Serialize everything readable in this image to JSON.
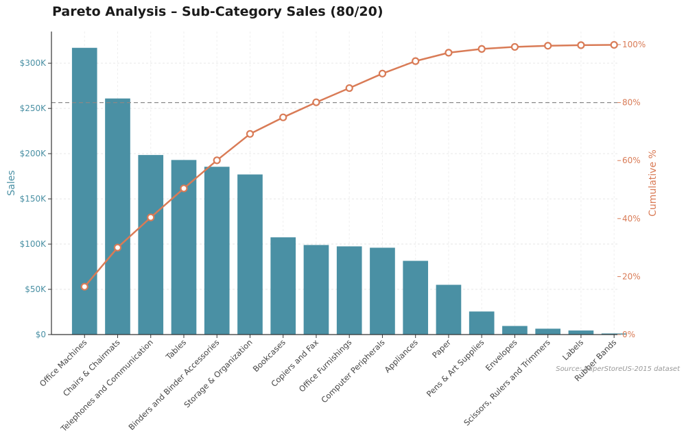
{
  "chart_data": {
    "type": "bar",
    "title": "Pareto Analysis – Sub-Category Sales (80/20)",
    "source": "Source: SuperStoreUS-2015 dataset",
    "categories": [
      "Office Machines",
      "Chairs & Chairmats",
      "Telephones and Communication",
      "Tables",
      "Binders and Binder Accessories",
      "Storage & Organization",
      "Bookcases",
      "Copiers and Fax",
      "Office Furnishings",
      "Computer Peripherals",
      "Appliances",
      "Paper",
      "Pens & Art Supplies",
      "Envelopes",
      "Scissors, Rulers and Trimmers",
      "Labels",
      "Rubber Bands"
    ],
    "series": [
      {
        "name": "Sales",
        "type": "bar",
        "axis": "left",
        "color": "#4a90a4",
        "values": [
          317000,
          261000,
          198500,
          193000,
          185500,
          177000,
          107500,
          99000,
          97500,
          96000,
          81500,
          55000,
          25500,
          9500,
          6500,
          4500,
          1200
        ]
      },
      {
        "name": "Cumulative %",
        "type": "line",
        "axis": "right",
        "color": "#d97b56",
        "values": [
          16.5,
          30.0,
          40.4,
          50.4,
          60.1,
          69.2,
          74.9,
          80.1,
          85.0,
          90.0,
          94.3,
          97.2,
          98.5,
          99.2,
          99.6,
          99.8,
          99.9
        ]
      }
    ],
    "ylabel": "Sales",
    "y2label": "Cumulative %",
    "ylim": [
      0,
      335000
    ],
    "y2lim": [
      0,
      104.5
    ],
    "yticks": [
      0,
      50000,
      100000,
      150000,
      200000,
      250000,
      300000
    ],
    "ytick_labels": [
      "$0",
      "$50K",
      "$100K",
      "$150K",
      "$200K",
      "$250K",
      "$300K"
    ],
    "y2ticks": [
      0,
      20,
      40,
      60,
      80,
      100
    ],
    "y2tick_labels": [
      "0%",
      "20%",
      "40%",
      "60%",
      "80%",
      "100%"
    ],
    "reference_line": {
      "value": 80,
      "axis": "right",
      "color": "#888888"
    },
    "grid": true
  }
}
